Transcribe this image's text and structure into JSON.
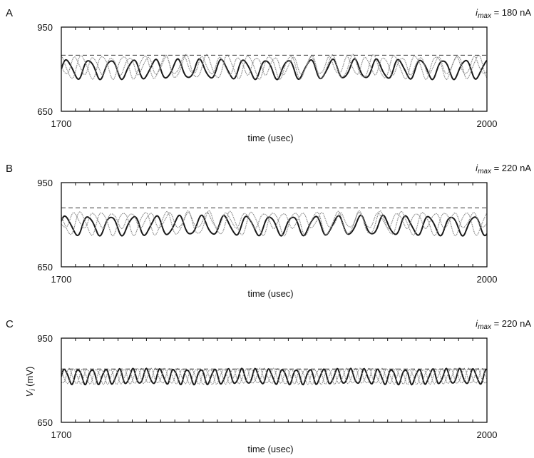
{
  "figure": {
    "colors": {
      "axis": "#111111",
      "series_dark": "#1a1a1a",
      "series_light": "#8a8a8a",
      "threshold": "#333333"
    }
  },
  "chart_data": [
    {
      "panel_label": "A",
      "type": "line",
      "annotation": {
        "symbol": "i",
        "subscript": "max",
        "rest": " = 180 nA"
      },
      "xlabel": "time (usec)",
      "ylabel": "",
      "xlim": [
        1700,
        2000
      ],
      "ylim": [
        650,
        950
      ],
      "x_ticks": [
        1700,
        2000
      ],
      "y_ticks": [
        650,
        950
      ],
      "grid": false,
      "threshold": 850,
      "series": [
        {
          "style": "dark",
          "mean": 800,
          "amplitude": 33,
          "period": 15.6,
          "phase": 0.0
        },
        {
          "style": "light",
          "mean": 808,
          "amplitude": 40,
          "period": 14.7,
          "phase": 1.7
        },
        {
          "style": "light",
          "mean": 812,
          "amplitude": 30,
          "period": 12.8,
          "phase": 3.1
        }
      ]
    },
    {
      "panel_label": "B",
      "type": "line",
      "annotation": {
        "symbol": "i",
        "subscript": "max",
        "rest": " = 220 nA"
      },
      "xlabel": "time (usec)",
      "ylabel": "",
      "xlim": [
        1700,
        2000
      ],
      "ylim": [
        650,
        950
      ],
      "x_ticks": [
        1700,
        2000
      ],
      "y_ticks": [
        650,
        950
      ],
      "grid": false,
      "threshold": 860,
      "series": [
        {
          "style": "dark",
          "mean": 797,
          "amplitude": 33,
          "period": 16.0,
          "phase": 0.4
        },
        {
          "style": "light",
          "mean": 805,
          "amplitude": 40,
          "period": 15.1,
          "phase": 2.2
        },
        {
          "style": "light",
          "mean": 815,
          "amplitude": 26,
          "period": 13.4,
          "phase": 3.6
        }
      ]
    },
    {
      "panel_label": "C",
      "type": "line",
      "annotation": {
        "symbol": "i",
        "subscript": "max",
        "rest": " = 220 nA"
      },
      "xlabel": "time (usec)",
      "ylabel": {
        "symbol": "V",
        "subscript": "i",
        "rest": " (mV)"
      },
      "xlim": [
        1700,
        2000
      ],
      "ylim": [
        650,
        950
      ],
      "x_ticks": [
        1700,
        2000
      ],
      "y_ticks": [
        650,
        950
      ],
      "grid": false,
      "threshold": 840,
      "series": [
        {
          "style": "dark",
          "mean": 813,
          "amplitude": 26,
          "period": 9.6,
          "phase": 0.0
        },
        {
          "style": "light",
          "mean": 814,
          "amplitude": 26,
          "period": 9.6,
          "phase": 2.1
        },
        {
          "style": "light",
          "mean": 814,
          "amplitude": 26,
          "period": 9.6,
          "phase": 4.2
        }
      ]
    }
  ]
}
